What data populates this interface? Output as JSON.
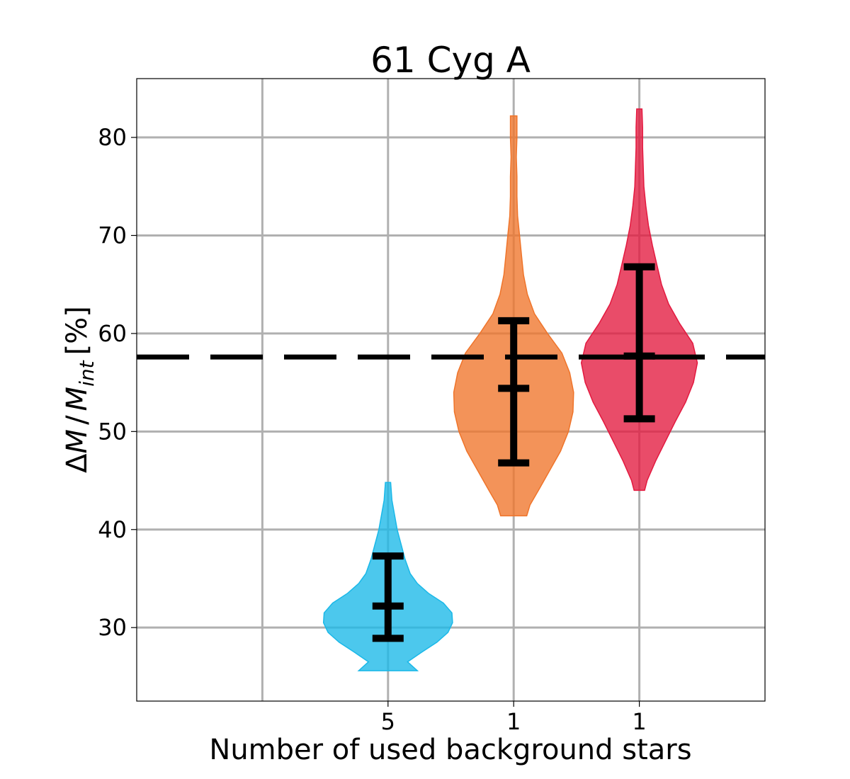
{
  "chart_data": {
    "type": "violin",
    "title": "61 Cyg A",
    "xlabel": "Number of used background stars",
    "ylabel": {
      "delta": "Δ",
      "M1": "M",
      "slash": "/",
      "M2": "M",
      "sub": "int",
      "unit": "[%]"
    },
    "ylim": [
      22.5,
      86
    ],
    "xlim": [
      -1,
      4
    ],
    "yticks": [
      30,
      40,
      50,
      60,
      70,
      80
    ],
    "grid": true,
    "reference_line": 57.6,
    "violins": [
      {
        "x_label": "5",
        "color": "#1ab8e8",
        "min": 25.6,
        "max": 44.8,
        "median": 32.2,
        "q_low": 28.9,
        "q_high": 37.3,
        "profile": [
          [
            25.6,
            0.45
          ],
          [
            26.5,
            0.3
          ],
          [
            27.5,
            0.52
          ],
          [
            28.5,
            0.75
          ],
          [
            29.5,
            0.92
          ],
          [
            30.5,
            0.99
          ],
          [
            31.5,
            0.98
          ],
          [
            32.5,
            0.85
          ],
          [
            33.5,
            0.62
          ],
          [
            34.5,
            0.45
          ],
          [
            35.5,
            0.34
          ],
          [
            37,
            0.26
          ],
          [
            38.5,
            0.2
          ],
          [
            40,
            0.14
          ],
          [
            41.5,
            0.1
          ],
          [
            43,
            0.06
          ],
          [
            44.8,
            0.04
          ]
        ]
      },
      {
        "x_label": "1",
        "color": "#ef742a",
        "min": 41.4,
        "max": 82.2,
        "median": 54.4,
        "q_low": 46.8,
        "q_high": 61.3,
        "profile": [
          [
            41.4,
            0.2
          ],
          [
            42.5,
            0.25
          ],
          [
            44,
            0.38
          ],
          [
            46,
            0.55
          ],
          [
            48,
            0.72
          ],
          [
            50,
            0.84
          ],
          [
            52,
            0.91
          ],
          [
            54,
            0.92
          ],
          [
            56,
            0.86
          ],
          [
            58,
            0.74
          ],
          [
            60,
            0.52
          ],
          [
            62,
            0.32
          ],
          [
            64,
            0.21
          ],
          [
            66,
            0.15
          ],
          [
            68,
            0.12
          ],
          [
            70,
            0.09
          ],
          [
            72,
            0.06
          ],
          [
            74,
            0.05
          ],
          [
            76,
            0.05
          ],
          [
            78,
            0.04
          ],
          [
            80,
            0.05
          ],
          [
            82.2,
            0.05
          ]
        ]
      },
      {
        "x_label": "1",
        "color": "#e3193f",
        "min": 44.0,
        "max": 82.9,
        "median": 57.7,
        "q_low": 51.3,
        "q_high": 66.8,
        "profile": [
          [
            44,
            0.08
          ],
          [
            45,
            0.12
          ],
          [
            47,
            0.25
          ],
          [
            49,
            0.4
          ],
          [
            51,
            0.55
          ],
          [
            53,
            0.71
          ],
          [
            55,
            0.83
          ],
          [
            57,
            0.89
          ],
          [
            59,
            0.82
          ],
          [
            61,
            0.62
          ],
          [
            63,
            0.45
          ],
          [
            65,
            0.34
          ],
          [
            67,
            0.27
          ],
          [
            69,
            0.2
          ],
          [
            71,
            0.14
          ],
          [
            73,
            0.1
          ],
          [
            75,
            0.07
          ],
          [
            77,
            0.06
          ],
          [
            79,
            0.05
          ],
          [
            81,
            0.05
          ],
          [
            82.9,
            0.04
          ]
        ]
      }
    ]
  }
}
